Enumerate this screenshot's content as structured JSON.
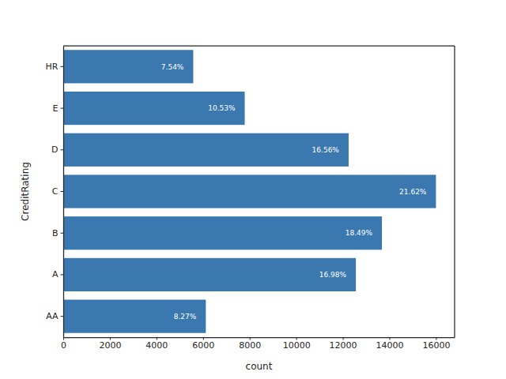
{
  "chart_data": {
    "type": "bar",
    "orientation": "horizontal",
    "x_label": "count",
    "y_label": "CreditRating",
    "categories": [
      "HR",
      "E",
      "D",
      "C",
      "B",
      "A",
      "AA"
    ],
    "values": [
      5580,
      7790,
      12250,
      16000,
      13680,
      12560,
      6120
    ],
    "bar_labels": [
      "7.54%",
      "10.53%",
      "16.56%",
      "21.62%",
      "18.49%",
      "16.98%",
      "8.27%"
    ],
    "color": "#3a78af",
    "xlim": [
      0,
      16800
    ],
    "xticks": [
      0,
      2000,
      4000,
      6000,
      8000,
      10000,
      12000,
      14000,
      16000
    ],
    "grid": false
  }
}
